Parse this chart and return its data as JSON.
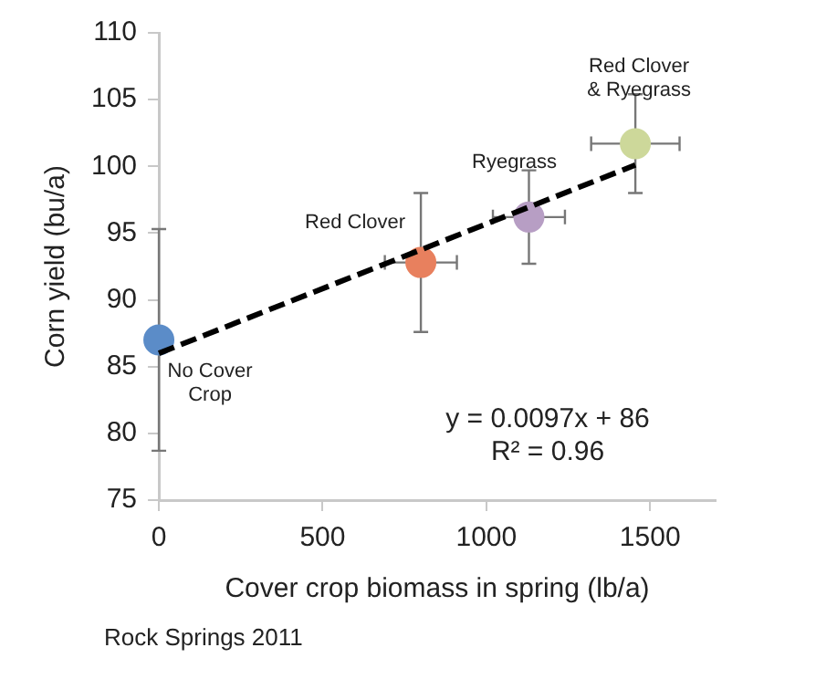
{
  "chart_data": {
    "type": "scatter",
    "xlabel": "Cover crop biomass in spring (lb/a)",
    "ylabel": "Corn yield (bu/a)",
    "xlim": [
      0,
      1700
    ],
    "xticks": [
      0,
      500,
      1000,
      1500
    ],
    "ylim": [
      75,
      110
    ],
    "yticks": [
      75,
      80,
      85,
      90,
      95,
      100,
      105,
      110
    ],
    "grid": false,
    "legend": false,
    "marker": "circle",
    "series": [
      {
        "name": "No Cover Crop",
        "color": "#5b8cc8",
        "x": [
          0
        ],
        "values": [
          87
        ],
        "errors": [
          8.3
        ],
        "xerrors": [
          null
        ]
      },
      {
        "name": "Red Clover",
        "color": "#e8805e",
        "x": [
          800
        ],
        "values": [
          92.8
        ],
        "errors": [
          5.2
        ],
        "xerrors": [
          110
        ]
      },
      {
        "name": "Ryegrass",
        "color": "#b79ec4",
        "x": [
          1130
        ],
        "values": [
          96.2
        ],
        "errors": [
          3.5
        ],
        "xerrors": [
          110
        ]
      },
      {
        "name": "Red Clover & Ryegrass",
        "color": "#cdd89a",
        "x": [
          1455
        ],
        "values": [
          101.7
        ],
        "errors": [
          3.7
        ],
        "xerrors": [
          135
        ]
      },
      {
        "type": "line",
        "color": "#000000",
        "line_style": "dashed",
        "marker": "none",
        "x": [
          0,
          1455
        ],
        "values": [
          86,
          100.1
        ]
      }
    ],
    "annotations": [
      "y = 0.0097x + 86",
      "R² = 0.96",
      "Rock Springs 2011"
    ]
  }
}
